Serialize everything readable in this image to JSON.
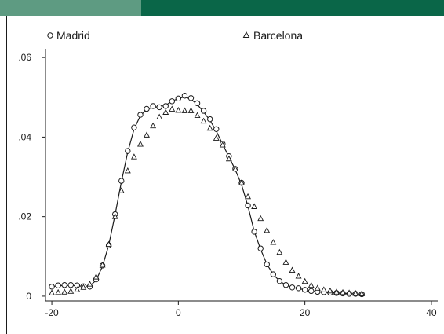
{
  "colors": {
    "bar_left": "#5e9b82",
    "bar_right": "#0a6648",
    "ink": "#1a1a1a"
  },
  "chart_data": {
    "type": "scatter",
    "title": "",
    "xlabel": "",
    "ylabel": "",
    "xlim": [
      -21,
      41
    ],
    "ylim": [
      -0.0012,
      0.0622
    ],
    "xticks": [
      -20,
      0,
      20,
      40
    ],
    "xtick_labels": [
      "-20",
      "0",
      "20",
      "40"
    ],
    "yticks": [
      0,
      0.02,
      0.04,
      0.06
    ],
    "ytick_labels": [
      "0",
      ".02",
      ".04",
      ".06"
    ],
    "grid": false,
    "legend": {
      "position": "top",
      "entries": [
        {
          "name": "Madrid",
          "marker": "circle"
        },
        {
          "name": "Barcelona",
          "marker": "triangle"
        }
      ]
    },
    "series": [
      {
        "name": "Madrid",
        "marker": "circle",
        "x": [
          -20,
          -19,
          -18,
          -17,
          -16,
          -15,
          -14,
          -13,
          -12,
          -11,
          -10,
          -9,
          -8,
          -7,
          -6,
          -5,
          -4,
          -3,
          -2,
          -1,
          0,
          1,
          2,
          3,
          4,
          5,
          6,
          7,
          8,
          9,
          10,
          11,
          12,
          13,
          14,
          15,
          16,
          17,
          18,
          19,
          20,
          21,
          22,
          23,
          24,
          25,
          26,
          27,
          28,
          29
        ],
        "y": [
          0.0024,
          0.0027,
          0.0028,
          0.0028,
          0.0027,
          0.0025,
          0.0024,
          0.0042,
          0.0077,
          0.0128,
          0.0206,
          0.029,
          0.0365,
          0.0424,
          0.0456,
          0.0471,
          0.0478,
          0.0475,
          0.0478,
          0.049,
          0.0497,
          0.0504,
          0.0498,
          0.0485,
          0.0466,
          0.0445,
          0.042,
          0.0383,
          0.0352,
          0.032,
          0.0285,
          0.0228,
          0.0162,
          0.012,
          0.008,
          0.0055,
          0.0038,
          0.0028,
          0.0022,
          0.002,
          0.0016,
          0.0013,
          0.0011,
          0.001,
          0.0009,
          0.0008,
          0.0007,
          0.0006,
          0.0006,
          0.0005
        ]
      },
      {
        "name": "Barcelona",
        "marker": "triangle",
        "x": [
          -20,
          -19,
          -18,
          -17,
          -16,
          -15,
          -14,
          -13,
          -12,
          -11,
          -10,
          -9,
          -8,
          -7,
          -6,
          -5,
          -4,
          -3,
          -2,
          -1,
          0,
          1,
          2,
          3,
          4,
          5,
          6,
          7,
          8,
          9,
          10,
          11,
          12,
          13,
          14,
          15,
          16,
          17,
          18,
          19,
          20,
          21,
          22,
          23,
          24,
          25,
          26,
          27,
          28,
          29
        ],
        "y": [
          0.0008,
          0.0009,
          0.001,
          0.0012,
          0.0016,
          0.0022,
          0.003,
          0.0048,
          0.0078,
          0.013,
          0.02,
          0.0265,
          0.0315,
          0.035,
          0.0382,
          0.0405,
          0.0428,
          0.045,
          0.0462,
          0.047,
          0.0467,
          0.0466,
          0.0466,
          0.0454,
          0.044,
          0.0422,
          0.0397,
          0.038,
          0.0345,
          0.032,
          0.0285,
          0.025,
          0.0225,
          0.0195,
          0.0165,
          0.0135,
          0.011,
          0.0085,
          0.0065,
          0.005,
          0.0037,
          0.0027,
          0.002,
          0.0016,
          0.0013,
          0.001,
          0.0009,
          0.0008,
          0.0007,
          0.0006
        ]
      }
    ],
    "fit_line": {
      "x": [
        -20,
        -19,
        -18,
        -17,
        -16,
        -15,
        -14,
        -13,
        -12,
        -11,
        -10,
        -9,
        -8,
        -7,
        -6,
        -5,
        -4,
        -3,
        -2,
        -1,
        0,
        1,
        2,
        3,
        4,
        5,
        6,
        7,
        8,
        9,
        10,
        11,
        12,
        13,
        14,
        15,
        16,
        17,
        18,
        19,
        20,
        21,
        22,
        23,
        24,
        25,
        26,
        27,
        28,
        29
      ],
      "y": [
        0.0024,
        0.0026,
        0.0027,
        0.0027,
        0.0026,
        0.0025,
        0.0026,
        0.004,
        0.0075,
        0.0128,
        0.0205,
        0.0288,
        0.0362,
        0.042,
        0.0454,
        0.0469,
        0.0475,
        0.0476,
        0.048,
        0.049,
        0.0497,
        0.0501,
        0.0495,
        0.0482,
        0.0463,
        0.0442,
        0.0415,
        0.0382,
        0.035,
        0.0318,
        0.028,
        0.0226,
        0.0163,
        0.0118,
        0.008,
        0.0055,
        0.0038,
        0.0028,
        0.0022,
        0.0019,
        0.0016,
        0.0013,
        0.0011,
        0.001,
        0.0009,
        0.0008,
        0.0007,
        0.0006,
        0.0006,
        0.0005
      ]
    }
  }
}
